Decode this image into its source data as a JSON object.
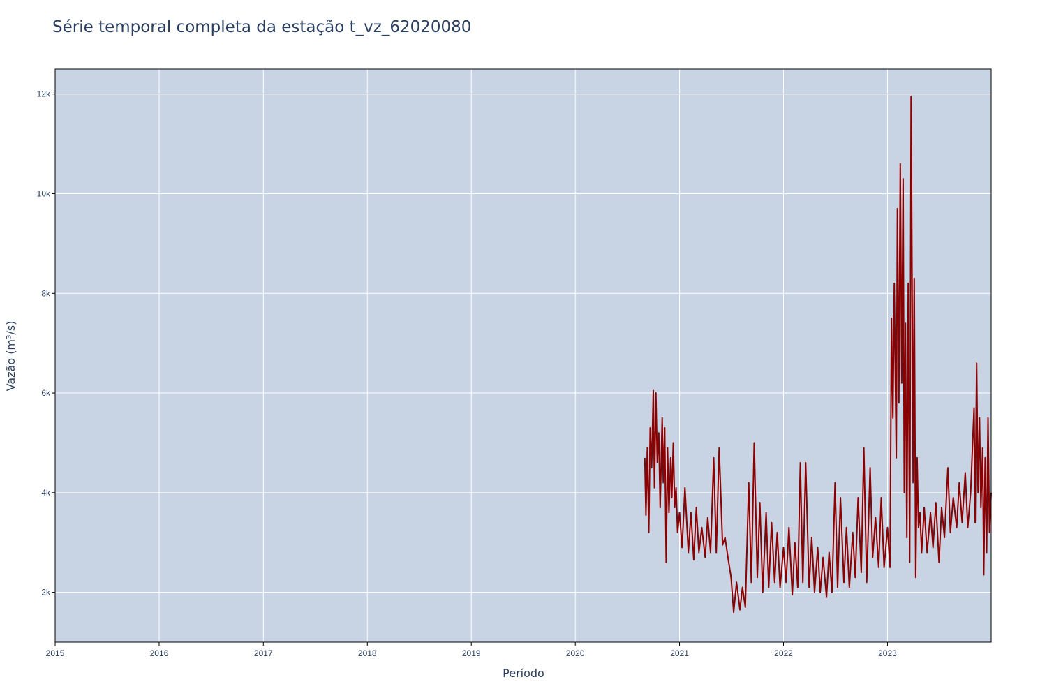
{
  "chart_data": {
    "type": "line",
    "title": "Série temporal completa da estação t_vz_62020080",
    "xlabel": "Período",
    "ylabel": "Vazão (m³/s)",
    "xlim": [
      "2015-01-01",
      "2023-12-31"
    ],
    "ylim": [
      1000,
      12500
    ],
    "x_tick_labels": [
      "2015",
      "2016",
      "2017",
      "2018",
      "2019",
      "2020",
      "2021",
      "2022",
      "2023"
    ],
    "y_tick_labels": [
      "2k",
      "4k",
      "6k",
      "8k",
      "10k",
      "12k"
    ],
    "y_tick_values": [
      2000,
      4000,
      6000,
      8000,
      10000,
      12000
    ],
    "grid": true,
    "legend": "none",
    "colors": {
      "line": "#8b0000",
      "plot_bg": "#c8d4e3",
      "grid": "#ffffff",
      "text": "#2a3f5f"
    },
    "series": [
      {
        "x": [
          "2020-09-01",
          "2020-09-05",
          "2020-09-10",
          "2020-09-15",
          "2020-09-20",
          "2020-09-25",
          "2020-10-01",
          "2020-10-05",
          "2020-10-10",
          "2020-10-15",
          "2020-10-20",
          "2020-10-25",
          "2020-11-01",
          "2020-11-05",
          "2020-11-10",
          "2020-11-15",
          "2020-11-20",
          "2020-11-25",
          "2020-12-01",
          "2020-12-05",
          "2020-12-10",
          "2020-12-15",
          "2020-12-20",
          "2020-12-25",
          "2021-01-01",
          "2021-01-10",
          "2021-01-20",
          "2021-02-01",
          "2021-02-10",
          "2021-02-20",
          "2021-03-01",
          "2021-03-10",
          "2021-03-20",
          "2021-04-01",
          "2021-04-10",
          "2021-04-20",
          "2021-05-01",
          "2021-05-10",
          "2021-05-20",
          "2021-06-01",
          "2021-06-10",
          "2021-06-20",
          "2021-07-01",
          "2021-07-10",
          "2021-07-20",
          "2021-08-01",
          "2021-08-10",
          "2021-08-20",
          "2021-09-01",
          "2021-09-10",
          "2021-09-20",
          "2021-10-01",
          "2021-10-10",
          "2021-10-20",
          "2021-11-01",
          "2021-11-10",
          "2021-11-20",
          "2021-12-01",
          "2021-12-10",
          "2021-12-20",
          "2022-01-01",
          "2022-01-10",
          "2022-01-20",
          "2022-02-01",
          "2022-02-10",
          "2022-02-20",
          "2022-03-01",
          "2022-03-10",
          "2022-03-20",
          "2022-04-01",
          "2022-04-10",
          "2022-04-20",
          "2022-05-01",
          "2022-05-10",
          "2022-05-20",
          "2022-06-01",
          "2022-06-10",
          "2022-06-20",
          "2022-07-01",
          "2022-07-10",
          "2022-07-20",
          "2022-08-01",
          "2022-08-10",
          "2022-08-20",
          "2022-09-01",
          "2022-09-10",
          "2022-09-20",
          "2022-10-01",
          "2022-10-10",
          "2022-10-20",
          "2022-11-01",
          "2022-11-10",
          "2022-11-20",
          "2022-12-01",
          "2022-12-10",
          "2022-12-20",
          "2023-01-01",
          "2023-01-10",
          "2023-01-15",
          "2023-01-20",
          "2023-01-25",
          "2023-02-01",
          "2023-02-05",
          "2023-02-10",
          "2023-02-15",
          "2023-02-20",
          "2023-02-25",
          "2023-03-01",
          "2023-03-05",
          "2023-03-10",
          "2023-03-15",
          "2023-03-20",
          "2023-03-25",
          "2023-04-01",
          "2023-04-05",
          "2023-04-10",
          "2023-04-15",
          "2023-04-20",
          "2023-04-25",
          "2023-05-01",
          "2023-05-10",
          "2023-05-20",
          "2023-06-01",
          "2023-06-10",
          "2023-06-20",
          "2023-07-01",
          "2023-07-10",
          "2023-07-20",
          "2023-08-01",
          "2023-08-10",
          "2023-08-20",
          "2023-09-01",
          "2023-09-10",
          "2023-09-20",
          "2023-10-01",
          "2023-10-10",
          "2023-10-20",
          "2023-11-01",
          "2023-11-05",
          "2023-11-10",
          "2023-11-15",
          "2023-11-20",
          "2023-11-25",
          "2023-12-01",
          "2023-12-05",
          "2023-12-10",
          "2023-12-15",
          "2023-12-20",
          "2023-12-25",
          "2023-12-31"
        ],
        "y": [
          4700,
          3550,
          4900,
          3200,
          5300,
          4500,
          6050,
          4100,
          6000,
          4600,
          5200,
          3700,
          5500,
          4200,
          5300,
          2600,
          4900,
          3600,
          4700,
          3900,
          5000,
          3700,
          4100,
          3200,
          3600,
          2900,
          4100,
          2800,
          3600,
          2650,
          3700,
          2800,
          3300,
          2700,
          3500,
          2800,
          4700,
          2800,
          4900,
          2950,
          3100,
          2700,
          2300,
          1600,
          2200,
          1650,
          2100,
          1700,
          4200,
          2200,
          5000,
          2300,
          3800,
          2000,
          3600,
          2100,
          3400,
          2200,
          3200,
          2100,
          2900,
          2200,
          3300,
          1950,
          3000,
          2100,
          4600,
          2200,
          4600,
          2100,
          3100,
          2000,
          2900,
          2000,
          2700,
          1900,
          2800,
          2000,
          4200,
          2100,
          3900,
          2200,
          3300,
          2100,
          3200,
          2300,
          3900,
          2400,
          4900,
          2200,
          4500,
          2700,
          3500,
          2500,
          3900,
          2500,
          3300,
          2500,
          7500,
          5500,
          8200,
          4700,
          9700,
          5800,
          10600,
          6200,
          10300,
          4000,
          7400,
          3100,
          8200,
          2600,
          11950,
          4200,
          8300,
          2300,
          4700,
          3300,
          3600,
          2800,
          3700,
          2800,
          3600,
          2900,
          3800,
          2600,
          3700,
          3100,
          4500,
          3200,
          3900,
          3300,
          4200,
          3400,
          4400,
          3300,
          4000,
          5700,
          3400,
          6600,
          4000,
          5500,
          3700,
          4900,
          2350,
          4700,
          2800,
          5500,
          3200,
          4000
        ]
      }
    ]
  }
}
